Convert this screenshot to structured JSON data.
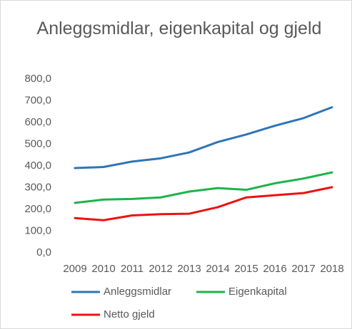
{
  "chart_data": {
    "type": "line",
    "title": "Anleggsmidlar, eigenkapital og gjeld",
    "categories": [
      "2009",
      "2010",
      "2011",
      "2012",
      "2013",
      "2014",
      "2015",
      "2016",
      "2017",
      "2018"
    ],
    "series": [
      {
        "name": "Anleggsmidlar",
        "color": "#2e75b6",
        "values": [
          390,
          395,
          420,
          435,
          462,
          510,
          545,
          585,
          620,
          670
        ]
      },
      {
        "name": "Eigenkapital",
        "color": "#1db34a",
        "values": [
          230,
          245,
          248,
          255,
          282,
          298,
          290,
          320,
          342,
          370
        ]
      },
      {
        "name": "Netto gjeld",
        "color": "#ee1111",
        "values": [
          160,
          150,
          172,
          178,
          180,
          210,
          255,
          265,
          275,
          302
        ]
      }
    ],
    "ylim": [
      0,
      800
    ],
    "yticks": [
      {
        "value": 0,
        "label": "0,0"
      },
      {
        "value": 100,
        "label": "100,0"
      },
      {
        "value": 200,
        "label": "200,0"
      },
      {
        "value": 300,
        "label": "300,0"
      },
      {
        "value": 400,
        "label": "400,0"
      },
      {
        "value": 500,
        "label": "500,0"
      },
      {
        "value": 600,
        "label": "600,0"
      },
      {
        "value": 700,
        "label": "700,0"
      },
      {
        "value": 800,
        "label": "800,0"
      }
    ],
    "grid": false
  }
}
